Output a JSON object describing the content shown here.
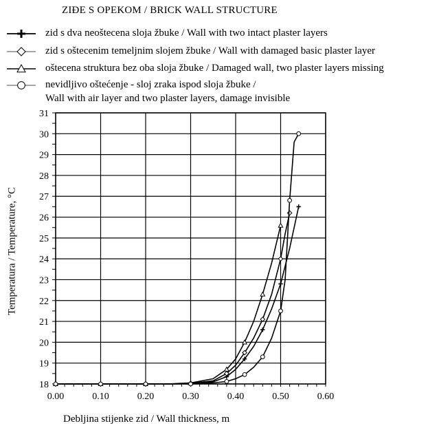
{
  "chart_data": {
    "type": "line",
    "title": "ZIĐE S OPEKOM / BRICK WALL STRUCTURE",
    "xlabel": "Debljina stijenke zid / Wall thickness, m",
    "ylabel": "Temperatura / Temperature, °C",
    "xlim": [
      0.0,
      0.6
    ],
    "ylim": [
      18,
      31
    ],
    "x_ticks": [
      "0.00",
      "0.10",
      "0.20",
      "0.30",
      "0.40",
      "0.50",
      "0.60"
    ],
    "y_ticks": [
      "18",
      "19",
      "20",
      "21",
      "22",
      "23",
      "24",
      "25",
      "26",
      "27",
      "28",
      "29",
      "30",
      "31"
    ],
    "grid": true,
    "legend_position": "top-left",
    "series": [
      {
        "name": "zid s dva neoštecena sloja žbuke / Wall with two intact plaster layers",
        "marker": "plus",
        "color": "#000000",
        "x": [
          0.0,
          0.05,
          0.1,
          0.15,
          0.2,
          0.25,
          0.3,
          0.35,
          0.38,
          0.4,
          0.42,
          0.44,
          0.46,
          0.48,
          0.5,
          0.52,
          0.54
        ],
        "y": [
          18.0,
          18.0,
          18.0,
          18.0,
          18.0,
          18.0,
          18.02,
          18.1,
          18.35,
          18.7,
          19.2,
          19.8,
          20.6,
          21.6,
          22.8,
          24.5,
          26.5
        ]
      },
      {
        "name": "zid s oštecenim temeljnim slojem žbuke / Wall with damaged basic plaster layer",
        "marker": "diamond",
        "color": "#000000",
        "x": [
          0.0,
          0.05,
          0.1,
          0.15,
          0.2,
          0.25,
          0.3,
          0.35,
          0.38,
          0.4,
          0.42,
          0.44,
          0.46,
          0.48,
          0.5,
          0.51,
          0.52
        ],
        "y": [
          18.0,
          18.0,
          18.0,
          18.0,
          18.0,
          18.0,
          18.03,
          18.15,
          18.5,
          18.9,
          19.5,
          20.2,
          21.1,
          22.3,
          24.0,
          25.2,
          26.2
        ]
      },
      {
        "name": "oštecena struktura bez oba sloja žbuke / Damaged wall, two plaster layers missing",
        "marker": "triangle",
        "color": "#000000",
        "x": [
          0.0,
          0.05,
          0.1,
          0.15,
          0.2,
          0.25,
          0.3,
          0.35,
          0.38,
          0.4,
          0.42,
          0.44,
          0.46,
          0.48,
          0.5
        ],
        "y": [
          18.0,
          18.0,
          18.0,
          18.0,
          18.0,
          18.0,
          18.05,
          18.25,
          18.7,
          19.2,
          20.0,
          21.0,
          22.3,
          23.8,
          25.6
        ]
      },
      {
        "name": "nevidljivo oštećenje - sloj zraka ispod sloja žbuke / Wall with air layer and two plaster layers, damage invisible",
        "name_line1": "nevidljivo oštećenje - sloj zraka ispod sloja žbuke /",
        "name_line2": "Wall with air layer and two plaster layers, damage invisible",
        "marker": "circle",
        "color": "#000000",
        "x": [
          0.0,
          0.05,
          0.1,
          0.15,
          0.2,
          0.25,
          0.3,
          0.35,
          0.38,
          0.4,
          0.42,
          0.44,
          0.46,
          0.48,
          0.5,
          0.51,
          0.52,
          0.53,
          0.54
        ],
        "y": [
          18.0,
          18.0,
          18.0,
          18.0,
          18.0,
          18.0,
          18.0,
          18.05,
          18.12,
          18.25,
          18.45,
          18.8,
          19.3,
          20.2,
          21.5,
          23.0,
          26.8,
          29.6,
          30.0
        ]
      }
    ]
  }
}
